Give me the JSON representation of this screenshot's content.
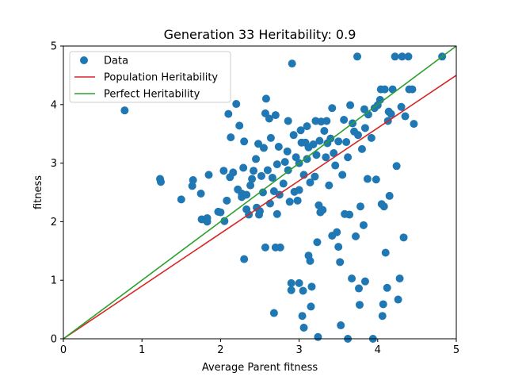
{
  "chart_data": {
    "type": "scatter",
    "title": "Generation 33 Heritability: 0.9",
    "xlabel": "Average Parent fitness",
    "ylabel": "fitness",
    "xlim": [
      0,
      5
    ],
    "ylim": [
      0,
      5
    ],
    "xticks": [
      "0",
      "1",
      "2",
      "3",
      "4",
      "5"
    ],
    "yticks": [
      "0",
      "1",
      "2",
      "3",
      "4",
      "5"
    ],
    "grid": false,
    "legend_position": "top-left",
    "series": [
      {
        "name": "Data",
        "kind": "scatter",
        "color": "#1f77b4",
        "points": [
          [
            0.78,
            3.9
          ],
          [
            1.23,
            2.73
          ],
          [
            1.24,
            2.68
          ],
          [
            1.5,
            2.38
          ],
          [
            1.65,
            2.71
          ],
          [
            1.64,
            2.61
          ],
          [
            1.75,
            2.48
          ],
          [
            1.76,
            2.04
          ],
          [
            1.83,
            2.06
          ],
          [
            1.83,
            2.0
          ],
          [
            1.85,
            2.8
          ],
          [
            1.97,
            2.17
          ],
          [
            2.0,
            2.16
          ],
          [
            2.04,
            2.87
          ],
          [
            2.05,
            2.01
          ],
          [
            2.08,
            2.36
          ],
          [
            2.1,
            3.84
          ],
          [
            2.13,
            3.44
          ],
          [
            2.12,
            2.76
          ],
          [
            2.16,
            2.84
          ],
          [
            2.2,
            4.01
          ],
          [
            2.22,
            2.55
          ],
          [
            2.24,
            3.64
          ],
          [
            2.27,
            2.42
          ],
          [
            2.27,
            2.48
          ],
          [
            2.29,
            2.92
          ],
          [
            2.3,
            3.37
          ],
          [
            2.3,
            1.36
          ],
          [
            2.33,
            2.21
          ],
          [
            2.33,
            2.46
          ],
          [
            2.36,
            2.12
          ],
          [
            2.38,
            2.62
          ],
          [
            2.4,
            2.73
          ],
          [
            2.42,
            2.87
          ],
          [
            2.45,
            3.07
          ],
          [
            2.46,
            2.24
          ],
          [
            2.48,
            3.33
          ],
          [
            2.49,
            2.12
          ],
          [
            2.5,
            2.18
          ],
          [
            2.52,
            2.78
          ],
          [
            2.54,
            2.5
          ],
          [
            2.55,
            3.26
          ],
          [
            2.57,
            1.56
          ],
          [
            2.58,
            4.1
          ],
          [
            2.57,
            3.85
          ],
          [
            2.6,
            2.88
          ],
          [
            2.62,
            3.76
          ],
          [
            2.63,
            2.31
          ],
          [
            2.64,
            3.43
          ],
          [
            2.66,
            2.75
          ],
          [
            2.68,
            2.52
          ],
          [
            2.68,
            0.44
          ],
          [
            2.7,
            3.82
          ],
          [
            2.7,
            1.56
          ],
          [
            2.72,
            2.98
          ],
          [
            2.72,
            2.13
          ],
          [
            2.74,
            3.28
          ],
          [
            2.75,
            2.46
          ],
          [
            2.76,
            1.56
          ],
          [
            2.8,
            2.65
          ],
          [
            2.82,
            3.02
          ],
          [
            2.85,
            3.2
          ],
          [
            2.86,
            2.88
          ],
          [
            2.86,
            3.72
          ],
          [
            2.88,
            2.34
          ],
          [
            2.9,
            0.95
          ],
          [
            2.9,
            0.83
          ],
          [
            2.91,
            4.7
          ],
          [
            2.93,
            3.48
          ],
          [
            2.94,
            2.51
          ],
          [
            2.96,
            3.1
          ],
          [
            2.98,
            2.36
          ],
          [
            3.0,
            3.0
          ],
          [
            3.0,
            2.54
          ],
          [
            3.0,
            0.95
          ],
          [
            3.02,
            3.56
          ],
          [
            3.03,
            3.35
          ],
          [
            3.04,
            0.39
          ],
          [
            3.05,
            0.82
          ],
          [
            3.06,
            0.19
          ],
          [
            3.06,
            2.8
          ],
          [
            3.08,
            3.35
          ],
          [
            3.1,
            3.07
          ],
          [
            3.1,
            3.63
          ],
          [
            3.12,
            3.27
          ],
          [
            3.12,
            1.42
          ],
          [
            3.14,
            1.33
          ],
          [
            3.14,
            2.67
          ],
          [
            3.15,
            0.55
          ],
          [
            3.16,
            0.89
          ],
          [
            3.18,
            3.32
          ],
          [
            3.2,
            2.77
          ],
          [
            3.21,
            3.72
          ],
          [
            3.22,
            3.14
          ],
          [
            3.23,
            1.65
          ],
          [
            3.24,
            0.03
          ],
          [
            3.25,
            2.28
          ],
          [
            3.26,
            3.38
          ],
          [
            3.27,
            2.16
          ],
          [
            3.28,
            3.71
          ],
          [
            3.3,
            2.2
          ],
          [
            3.32,
            3.55
          ],
          [
            3.34,
            3.1
          ],
          [
            3.35,
            3.72
          ],
          [
            3.36,
            3.34
          ],
          [
            3.38,
            2.62
          ],
          [
            3.4,
            3.42
          ],
          [
            3.42,
            1.76
          ],
          [
            3.42,
            3.94
          ],
          [
            3.44,
            3.17
          ],
          [
            3.46,
            2.96
          ],
          [
            3.48,
            1.82
          ],
          [
            3.5,
            1.57
          ],
          [
            3.5,
            3.37
          ],
          [
            3.52,
            1.31
          ],
          [
            3.53,
            0.23
          ],
          [
            3.55,
            2.8
          ],
          [
            3.57,
            3.74
          ],
          [
            3.58,
            2.13
          ],
          [
            3.6,
            3.36
          ],
          [
            3.62,
            3.1
          ],
          [
            3.62,
            0.0
          ],
          [
            3.64,
            2.12
          ],
          [
            3.65,
            3.99
          ],
          [
            3.67,
            1.03
          ],
          [
            3.68,
            3.68
          ],
          [
            3.7,
            3.54
          ],
          [
            3.72,
            1.75
          ],
          [
            3.74,
            4.82
          ],
          [
            3.75,
            3.48
          ],
          [
            3.76,
            0.86
          ],
          [
            3.77,
            0.58
          ],
          [
            3.78,
            2.26
          ],
          [
            3.8,
            3.24
          ],
          [
            3.82,
            1.94
          ],
          [
            3.83,
            3.92
          ],
          [
            3.84,
            3.6
          ],
          [
            3.84,
            0.98
          ],
          [
            3.87,
            2.73
          ],
          [
            3.88,
            3.83
          ],
          [
            3.92,
            3.43
          ],
          [
            3.94,
            0.0
          ],
          [
            3.96,
            3.94
          ],
          [
            3.98,
            2.72
          ],
          [
            4.0,
            3.99
          ],
          [
            4.03,
            4.08
          ],
          [
            4.04,
            4.26
          ],
          [
            4.06,
            0.39
          ],
          [
            4.05,
            2.3
          ],
          [
            4.07,
            0.59
          ],
          [
            4.08,
            2.26
          ],
          [
            4.09,
            4.26
          ],
          [
            4.1,
            1.47
          ],
          [
            4.12,
            0.87
          ],
          [
            4.13,
            3.72
          ],
          [
            4.14,
            3.88
          ],
          [
            4.15,
            2.44
          ],
          [
            4.17,
            3.84
          ],
          [
            4.19,
            4.26
          ],
          [
            4.22,
            4.82
          ],
          [
            4.24,
            2.95
          ],
          [
            4.26,
            0.67
          ],
          [
            4.28,
            1.03
          ],
          [
            4.3,
            3.96
          ],
          [
            4.31,
            4.82
          ],
          [
            4.33,
            1.73
          ],
          [
            4.35,
            3.8
          ],
          [
            4.39,
            4.82
          ],
          [
            4.4,
            4.26
          ],
          [
            4.44,
            4.26
          ],
          [
            4.46,
            3.67
          ],
          [
            4.82,
            4.82
          ]
        ]
      },
      {
        "name": "Population Heritability",
        "kind": "line",
        "color": "#d62728",
        "points": [
          [
            0,
            0
          ],
          [
            5,
            4.5
          ]
        ]
      },
      {
        "name": "Perfect Heritability",
        "kind": "line",
        "color": "#2ca02c",
        "points": [
          [
            0,
            0
          ],
          [
            5,
            5
          ]
        ]
      }
    ]
  }
}
